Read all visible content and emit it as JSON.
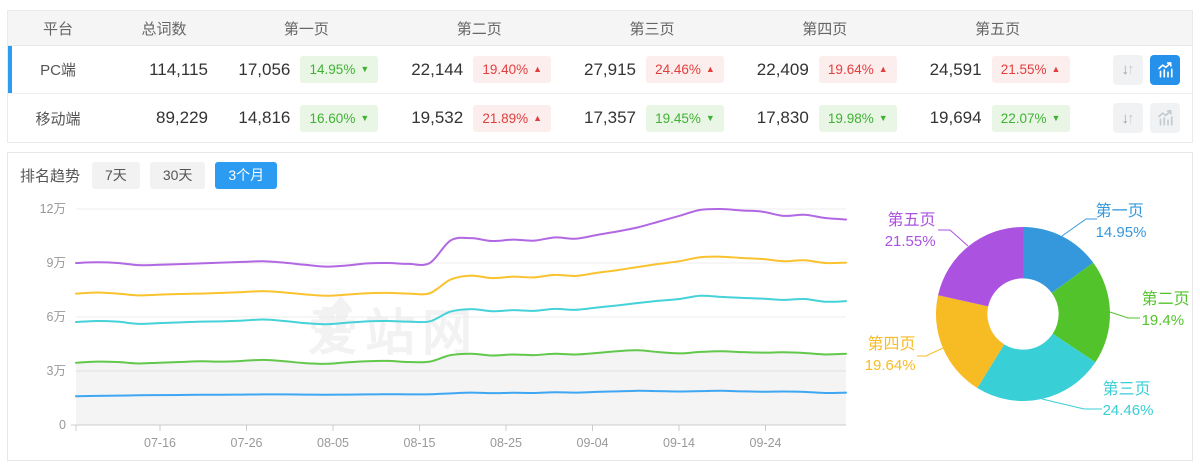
{
  "table": {
    "columns": [
      "平台",
      "总词数",
      "第一页",
      "第二页",
      "第三页",
      "第四页",
      "第五页"
    ],
    "rows": [
      {
        "platform": "PC端",
        "total": "114,115",
        "selected": true,
        "chart_active": true,
        "pages": [
          {
            "value": "17,056",
            "pct": "14.95%",
            "dir": "down"
          },
          {
            "value": "22,144",
            "pct": "19.40%",
            "dir": "up"
          },
          {
            "value": "27,915",
            "pct": "24.46%",
            "dir": "up"
          },
          {
            "value": "22,409",
            "pct": "19.64%",
            "dir": "up"
          },
          {
            "value": "24,591",
            "pct": "21.55%",
            "dir": "up"
          }
        ]
      },
      {
        "platform": "移动端",
        "total": "89,229",
        "selected": false,
        "chart_active": false,
        "pages": [
          {
            "value": "14,816",
            "pct": "16.60%",
            "dir": "down"
          },
          {
            "value": "19,532",
            "pct": "21.89%",
            "dir": "up"
          },
          {
            "value": "17,357",
            "pct": "19.45%",
            "dir": "down"
          },
          {
            "value": "17,830",
            "pct": "19.98%",
            "dir": "down"
          },
          {
            "value": "19,694",
            "pct": "22.07%",
            "dir": "down"
          }
        ]
      }
    ]
  },
  "trend": {
    "label": "排名趋势",
    "tabs": [
      {
        "label": "7天",
        "active": false
      },
      {
        "label": "30天",
        "active": false
      },
      {
        "label": "3个月",
        "active": true
      }
    ]
  },
  "watermark": "爱站网",
  "colors": {
    "accent_blue": "#2b9cf2",
    "badge_up_red": "#e33e3e",
    "badge_down_green": "#3fb234",
    "grid": "#ececec",
    "axis": "#cccccc",
    "tick_text": "#999999"
  },
  "chart_data": [
    {
      "type": "line",
      "x_ticks": [
        "07-16",
        "07-26",
        "08-05",
        "08-15",
        "08-25",
        "09-04",
        "09-14",
        "09-24"
      ],
      "y_ticks": [
        {
          "label": "12万",
          "value": 120000
        },
        {
          "label": "9万",
          "value": 90000
        },
        {
          "label": "6万",
          "value": 60000
        },
        {
          "label": "3万",
          "value": 30000
        },
        {
          "label": "0",
          "value": 0
        }
      ],
      "ylim": [
        0,
        120000
      ],
      "values_unit_wan": 10000,
      "series": [
        {
          "name": "purple-line",
          "color": "#b168e2",
          "area": false,
          "values": [
            9.0,
            9.04,
            9.0,
            8.88,
            8.9,
            8.94,
            8.98,
            9.02,
            9.06,
            9.1,
            9.02,
            8.9,
            8.8,
            8.86,
            8.98,
            9.0,
            8.95,
            9.0,
            10.25,
            10.38,
            10.22,
            10.3,
            10.24,
            10.42,
            10.35,
            10.55,
            10.75,
            10.98,
            11.3,
            11.62,
            11.95,
            12.0,
            11.92,
            11.85,
            11.62,
            11.68,
            11.5,
            11.42
          ]
        },
        {
          "name": "yellow-line",
          "color": "#f9c22e",
          "area": false,
          "values": [
            7.3,
            7.36,
            7.3,
            7.2,
            7.24,
            7.28,
            7.3,
            7.34,
            7.38,
            7.44,
            7.36,
            7.26,
            7.18,
            7.24,
            7.32,
            7.34,
            7.3,
            7.32,
            8.08,
            8.3,
            8.16,
            8.24,
            8.2,
            8.34,
            8.28,
            8.45,
            8.6,
            8.78,
            8.95,
            9.1,
            9.32,
            9.35,
            9.28,
            9.22,
            9.1,
            9.15,
            9.0,
            9.02
          ]
        },
        {
          "name": "cyan-line",
          "color": "#45d2d8",
          "area": false,
          "values": [
            5.72,
            5.78,
            5.74,
            5.62,
            5.66,
            5.7,
            5.74,
            5.76,
            5.8,
            5.86,
            5.78,
            5.66,
            5.6,
            5.68,
            5.76,
            5.78,
            5.74,
            5.76,
            6.3,
            6.44,
            6.32,
            6.38,
            6.34,
            6.45,
            6.4,
            6.52,
            6.64,
            6.78,
            6.9,
            7.0,
            7.18,
            7.12,
            7.06,
            7.02,
            6.95,
            7.0,
            6.85,
            6.88
          ]
        },
        {
          "name": "green-line",
          "color": "#61c84b",
          "area": true,
          "values": [
            3.46,
            3.52,
            3.5,
            3.42,
            3.46,
            3.5,
            3.54,
            3.52,
            3.56,
            3.62,
            3.54,
            3.44,
            3.4,
            3.48,
            3.54,
            3.56,
            3.5,
            3.52,
            3.88,
            3.96,
            3.86,
            3.92,
            3.88,
            3.96,
            3.92,
            4.0,
            4.1,
            4.15,
            4.05,
            3.98,
            4.06,
            4.1,
            4.05,
            4.02,
            4.04,
            4.0,
            3.92,
            3.96
          ]
        },
        {
          "name": "blue-line",
          "color": "#3fa6f2",
          "area": false,
          "values": [
            1.6,
            1.62,
            1.63,
            1.65,
            1.66,
            1.67,
            1.68,
            1.68,
            1.69,
            1.7,
            1.7,
            1.69,
            1.68,
            1.69,
            1.7,
            1.71,
            1.7,
            1.71,
            1.76,
            1.8,
            1.77,
            1.79,
            1.78,
            1.82,
            1.8,
            1.84,
            1.87,
            1.9,
            1.88,
            1.86,
            1.88,
            1.9,
            1.87,
            1.85,
            1.86,
            1.84,
            1.78,
            1.8
          ]
        }
      ]
    },
    {
      "type": "pie",
      "inner_radius_ratio": 0.41,
      "slices": [
        {
          "label": "第一页",
          "value": 14.95,
          "display": "14.95%",
          "color": "#3598dc"
        },
        {
          "label": "第二页",
          "value": 19.4,
          "display": "19.4%",
          "color": "#53c32c"
        },
        {
          "label": "第三页",
          "value": 24.46,
          "display": "24.46%",
          "color": "#38cfd6"
        },
        {
          "label": "第四页",
          "value": 19.64,
          "display": "19.64%",
          "color": "#f7bc24"
        },
        {
          "label": "第五页",
          "value": 21.55,
          "display": "21.55%",
          "color": "#ab52e0"
        }
      ]
    }
  ]
}
